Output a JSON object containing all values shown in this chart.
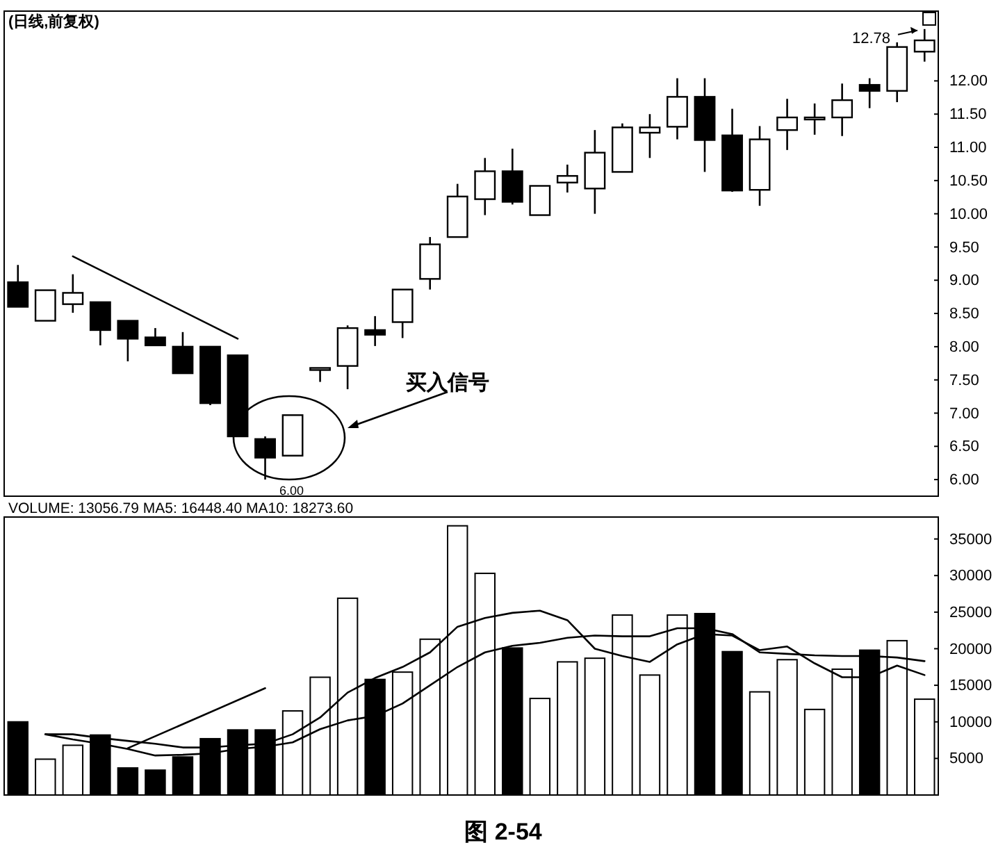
{
  "chart_data": [
    {
      "type": "candlestick",
      "title": "(日线,前复权)",
      "categories": [
        null,
        null,
        null,
        null,
        null,
        null,
        null,
        null,
        null,
        null,
        null,
        null,
        null,
        null,
        null,
        null,
        null,
        null,
        null,
        null,
        null,
        null,
        null,
        null,
        null,
        null,
        null,
        null,
        null,
        null,
        null,
        null,
        null,
        null
      ],
      "ohlc": [
        [
          8.97,
          9.23,
          8.6,
          8.6
        ],
        [
          8.39,
          8.85,
          8.39,
          8.85
        ],
        [
          8.64,
          9.09,
          8.51,
          8.81
        ],
        [
          8.67,
          8.67,
          8.02,
          8.25
        ],
        [
          8.39,
          8.39,
          7.78,
          8.12
        ],
        [
          8.14,
          8.28,
          8.02,
          8.02
        ],
        [
          8.0,
          8.22,
          7.6,
          7.6
        ],
        [
          8.0,
          8.0,
          7.12,
          7.15
        ],
        [
          7.87,
          7.87,
          6.65,
          6.65
        ],
        [
          6.61,
          6.65,
          6.0,
          6.33
        ],
        [
          6.36,
          6.97,
          6.36,
          6.97
        ],
        [
          7.67,
          7.68,
          7.47,
          7.68
        ],
        [
          7.71,
          8.32,
          7.36,
          8.28
        ],
        [
          8.25,
          8.46,
          8.01,
          8.18
        ],
        [
          8.37,
          8.86,
          8.13,
          8.86
        ],
        [
          9.02,
          9.65,
          8.86,
          9.54
        ],
        [
          9.65,
          10.45,
          9.65,
          10.26
        ],
        [
          10.22,
          10.84,
          9.98,
          10.64
        ],
        [
          10.64,
          10.98,
          10.14,
          10.18
        ],
        [
          9.98,
          10.42,
          9.98,
          10.42
        ],
        [
          10.47,
          10.74,
          10.32,
          10.57
        ],
        [
          10.38,
          11.26,
          10.0,
          10.92
        ],
        [
          10.63,
          11.36,
          10.63,
          11.3
        ],
        [
          11.22,
          11.5,
          10.84,
          11.3
        ],
        [
          11.31,
          12.04,
          11.12,
          11.76
        ],
        [
          11.76,
          12.04,
          10.63,
          11.11
        ],
        [
          11.18,
          11.58,
          10.33,
          10.35
        ],
        [
          10.36,
          11.32,
          10.12,
          11.12
        ],
        [
          11.26,
          11.73,
          10.96,
          11.45
        ],
        [
          11.44,
          11.66,
          11.19,
          11.45
        ],
        [
          11.45,
          11.96,
          11.17,
          11.71
        ],
        [
          11.94,
          12.04,
          11.59,
          11.85
        ],
        [
          11.85,
          12.58,
          11.68,
          12.51
        ],
        [
          12.44,
          12.78,
          12.29,
          12.61
        ]
      ],
      "series": [
        {
          "type": "line",
          "color": "#000000",
          "values": [
            null,
            null,
            9.36,
            null,
            null,
            null,
            null,
            null,
            8.12,
            null,
            null,
            null,
            null,
            null,
            null,
            null,
            null,
            null,
            null,
            null,
            null,
            null,
            null,
            null,
            null,
            null,
            null,
            null,
            null,
            null,
            null,
            null,
            null,
            null
          ]
        }
      ],
      "ylim": [
        5.75,
        13.05
      ],
      "yticks": [
        {
          "value": 6,
          "label": "6.00"
        },
        {
          "value": 6.5,
          "label": "6.50"
        },
        {
          "value": 7,
          "label": "7.00"
        },
        {
          "value": 7.5,
          "label": "7.50"
        },
        {
          "value": 8,
          "label": "8.00"
        },
        {
          "value": 8.5,
          "label": "8.50"
        },
        {
          "value": 9,
          "label": "9.00"
        },
        {
          "value": 9.5,
          "label": "9.50"
        },
        {
          "value": 10,
          "label": "10.00"
        },
        {
          "value": 10.5,
          "label": "10.50"
        },
        {
          "value": 11,
          "label": "11.00"
        },
        {
          "value": 11.5,
          "label": "11.50"
        },
        {
          "value": 12,
          "label": "12.00"
        }
      ],
      "tick_labels": "y",
      "annotations": [
        "6.00",
        "12.78",
        "买入信号"
      ]
    },
    {
      "type": "bar",
      "categories": [
        null,
        null,
        null,
        null,
        null,
        null,
        null,
        null,
        null,
        null,
        null,
        null,
        null,
        null,
        null,
        null,
        null,
        null,
        null,
        null,
        null,
        null,
        null,
        null,
        null,
        null,
        null,
        null,
        null,
        null,
        null,
        null,
        null,
        null
      ],
      "series": [
        {
          "type": "bar",
          "values": [
            10000,
            4900,
            6800,
            8200,
            3700,
            3400,
            5200,
            7700,
            8900,
            8900,
            11500,
            16100,
            26900,
            15800,
            16800,
            21300,
            36800,
            30300,
            20100,
            13200,
            18200,
            18700,
            24600,
            16400,
            24600,
            24800,
            19600,
            14100,
            18500,
            11700,
            17200,
            19800,
            21100,
            13100
          ],
          "colors": [
            "#000000",
            "#ffffff",
            "#ffffff",
            "#000000",
            "#000000",
            "#000000",
            "#000000",
            "#000000",
            "#000000",
            "#000000",
            "#ffffff",
            "#ffffff",
            "#ffffff",
            "#000000",
            "#ffffff",
            "#ffffff",
            "#ffffff",
            "#ffffff",
            "#000000",
            "#ffffff",
            "#ffffff",
            "#ffffff",
            "#ffffff",
            "#ffffff",
            "#ffffff",
            "#000000",
            "#000000",
            "#ffffff",
            "#ffffff",
            "#ffffff",
            "#ffffff",
            "#000000",
            "#ffffff",
            "#ffffff"
          ]
        },
        {
          "type": "line",
          "color": "#000000",
          "values": [
            null,
            8300,
            8300,
            7800,
            7400,
            7000,
            6500,
            6500,
            6800,
            7000,
            8300,
            10600,
            14000,
            16000,
            17500,
            19500,
            23000,
            24200,
            24900,
            25200,
            23900,
            20000,
            19000,
            18200,
            20600,
            22000,
            21800,
            19800,
            20300,
            18000,
            16100,
            16100,
            17700,
            16400
          ]
        },
        {
          "type": "line",
          "color": "#000000",
          "values": [
            null,
            8300,
            7600,
            7000,
            6300,
            5400,
            5500,
            5700,
            6300,
            6600,
            7200,
            9000,
            10200,
            10800,
            12500,
            15000,
            17500,
            19500,
            20400,
            20800,
            21500,
            21800,
            21700,
            21700,
            22800,
            22800,
            22000,
            19500,
            19300,
            19100,
            19000,
            19000,
            18800,
            18300
          ]
        },
        {
          "type": "line",
          "color": "#000000",
          "values": [
            null,
            null,
            null,
            null,
            6400,
            null,
            null,
            null,
            null,
            14600,
            null,
            null,
            null,
            null,
            null,
            null,
            null,
            null,
            null,
            null,
            null,
            null,
            null,
            null,
            null,
            null,
            null,
            null,
            null,
            null,
            null,
            null,
            null,
            null
          ]
        }
      ],
      "ylim": [
        0,
        38000
      ],
      "yticks": [
        5000,
        10000,
        15000,
        20000,
        25000,
        30000,
        35000
      ],
      "tick_labels": "y",
      "annotations": [
        "VOLUME: 13056.79 MA5: 16448.40 MA10: 18273.60",
        "图 2-54"
      ]
    }
  ]
}
